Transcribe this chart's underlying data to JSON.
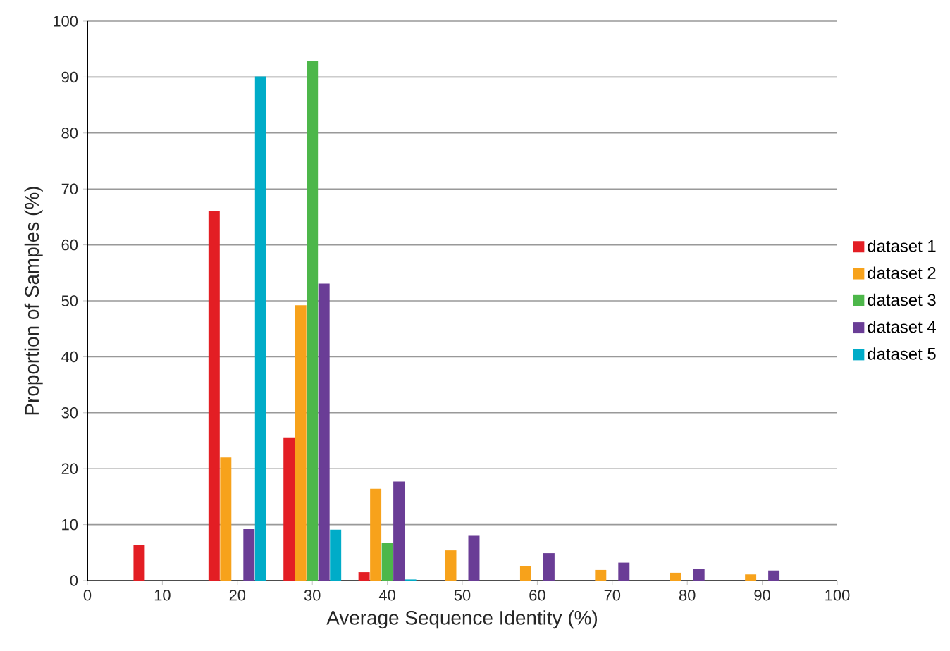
{
  "chart_data": {
    "type": "bar",
    "xlabel": "Average Sequence Identity (%)",
    "ylabel": "Proportion of Samples (%)",
    "x": [
      10,
      20,
      30,
      40,
      50,
      60,
      70,
      80,
      90
    ],
    "series": [
      {
        "name": "dataset 1",
        "color": "#e31e24",
        "values": [
          6.4,
          66.0,
          25.6,
          1.5,
          0,
          0,
          0,
          0,
          0
        ]
      },
      {
        "name": "dataset 2",
        "color": "#f7a21b",
        "values": [
          0,
          22.0,
          49.2,
          16.4,
          5.4,
          2.6,
          1.9,
          1.4,
          1.1
        ]
      },
      {
        "name": "dataset 3",
        "color": "#4db74a",
        "values": [
          0,
          0,
          92.9,
          6.8,
          0,
          0,
          0,
          0,
          0
        ]
      },
      {
        "name": "dataset 4",
        "color": "#6a3d96",
        "values": [
          0,
          9.2,
          53.1,
          17.7,
          8.0,
          4.9,
          3.2,
          2.1,
          1.8
        ]
      },
      {
        "name": "dataset 5",
        "color": "#00acc8",
        "values": [
          0,
          90.1,
          9.1,
          0.2,
          0,
          0,
          0,
          0,
          0
        ]
      }
    ],
    "xlim": [
      0,
      100
    ],
    "ylim": [
      0,
      100
    ],
    "xticks": [
      0,
      10,
      20,
      30,
      40,
      50,
      60,
      70,
      80,
      90,
      100
    ],
    "yticks": [
      0,
      10,
      20,
      30,
      40,
      50,
      60,
      70,
      80,
      90,
      100
    ],
    "grid": "y",
    "legend": "right"
  }
}
